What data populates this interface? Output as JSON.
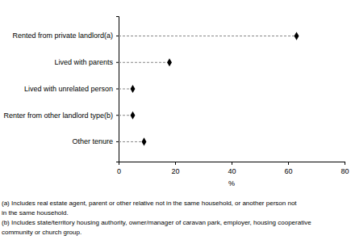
{
  "chart_data": {
    "type": "dot",
    "orientation": "horizontal",
    "categories": [
      "Rented from private landlord(a)",
      "Lived with parents",
      "Lived with unrelated person",
      "Renter from other landlord type(b)",
      "Other tenure"
    ],
    "values": [
      63,
      18,
      5,
      5,
      9
    ],
    "color": "#000000",
    "marker": "diamond",
    "line_style": "dashed",
    "xlim": [
      0,
      80
    ],
    "xticks": [
      0,
      20,
      40,
      60,
      80
    ],
    "xlabel": "%",
    "grid": false,
    "annotations": [
      "(a) Includes real estate agent, parent or other relative not in the same household, or another person not",
      "in the same household.",
      "(b) Includes state/territory housing authority, owner/manager of caravan park, employer, housing cooperative",
      "community or church group."
    ]
  }
}
